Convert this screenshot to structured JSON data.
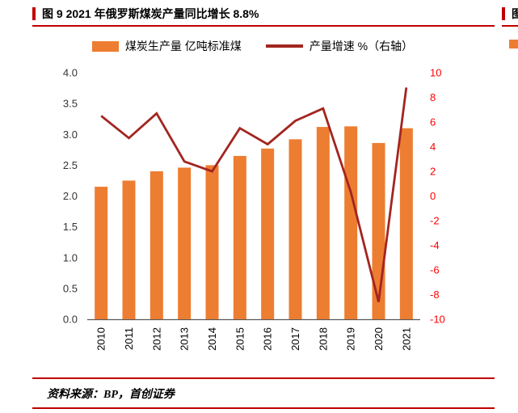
{
  "figure": {
    "title": "图 9 2021 年俄罗斯煤炭产量同比增长 8.8%",
    "adjacent_title_fragment": "图",
    "source": "资料来源：BP，首创证券"
  },
  "colors": {
    "accent_red": "#C00000",
    "bar_orange": "#ED7D31",
    "line_dark_red": "#A3251F",
    "right_axis_red": "#FF0000",
    "axis_line_gray": "#595959"
  },
  "chart_data": {
    "type": "bar",
    "subtype": "bar-with-line-dual-axis",
    "categories": [
      "2010",
      "2011",
      "2012",
      "2013",
      "2014",
      "2015",
      "2016",
      "2017",
      "2018",
      "2019",
      "2020",
      "2021"
    ],
    "series": [
      {
        "name": "煤炭生产量 亿吨标准煤",
        "type": "bar",
        "axis": "left",
        "color": "#ED7D31",
        "values": [
          2.15,
          2.25,
          2.4,
          2.46,
          2.5,
          2.65,
          2.77,
          2.92,
          3.12,
          3.13,
          2.86,
          3.1
        ]
      },
      {
        "name": "产量增速 %（右轴）",
        "type": "line",
        "axis": "right",
        "color": "#A3251F",
        "values": [
          6.5,
          4.7,
          6.7,
          2.8,
          2.0,
          5.5,
          4.2,
          6.1,
          7.1,
          0.3,
          -8.6,
          8.8
        ]
      }
    ],
    "left_axis": {
      "min": 0,
      "max": 4,
      "ticks": [
        "4.0",
        "3.5",
        "3.0",
        "2.5",
        "2.0",
        "1.5",
        "1.0",
        "0.5",
        "0.0"
      ],
      "color": "#333333"
    },
    "right_axis": {
      "min": -10,
      "max": 10,
      "ticks": [
        "10",
        "8",
        "6",
        "4",
        "2",
        "0",
        "-2",
        "-4",
        "-6",
        "-8",
        "-10"
      ],
      "color": "#FF0000"
    },
    "legend_position": "top",
    "grid": false
  }
}
